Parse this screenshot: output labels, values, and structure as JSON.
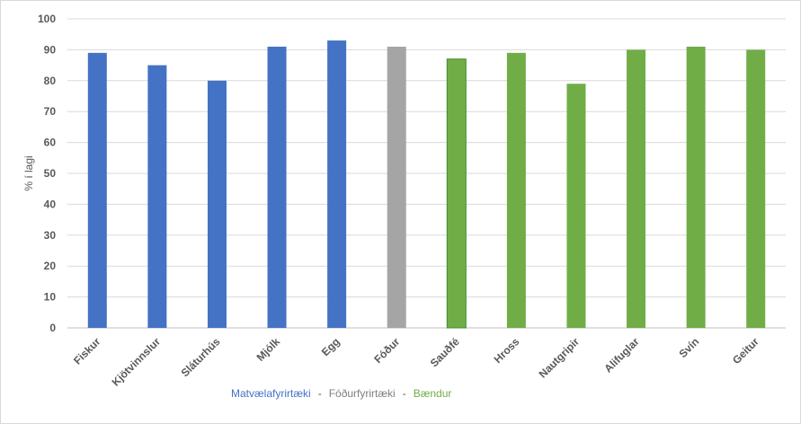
{
  "chart_data": {
    "type": "bar",
    "title": "",
    "xlabel": "",
    "ylabel": "% í lagi",
    "ylim": [
      0,
      100
    ],
    "yticks": [
      0,
      10,
      20,
      30,
      40,
      50,
      60,
      70,
      80,
      90,
      100
    ],
    "grid": true,
    "legend_placement": "bottom",
    "categories": [
      "Fiskur",
      "Kjötvinnslur",
      "Sláturhús",
      "Mjólk",
      "Egg",
      "Fóður",
      "Sauðfé",
      "Hross",
      "Nautgripir",
      "Alifuglar",
      "Svín",
      "Geitur"
    ],
    "values": [
      89,
      85,
      80,
      91,
      93,
      91,
      87,
      89,
      79,
      90,
      91,
      90
    ],
    "groups": [
      "Matvælafyrirtæki",
      "Matvælafyrirtæki",
      "Matvælafyrirtæki",
      "Matvælafyrirtæki",
      "Matvælafyrirtæki",
      "Fóðurfyrirtæki",
      "Bændur",
      "Bændur",
      "Bændur",
      "Bændur",
      "Bændur",
      "Bændur"
    ],
    "legend": [
      {
        "label": "Matvælafyrirtæki",
        "color": "#4472c4"
      },
      {
        "label": "Fóðurfyrirtæki",
        "color": "#a5a5a5"
      },
      {
        "label": "Bændur",
        "color": "#70ad47"
      }
    ],
    "legend_separator": "-"
  },
  "colors": {
    "grid": "#d9d9d9",
    "text": "#595959",
    "bar_outline_highlight": "#3c8f2a"
  }
}
